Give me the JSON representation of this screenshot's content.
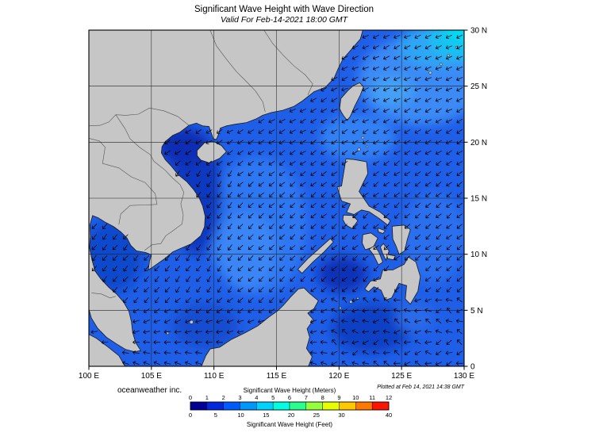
{
  "header": {
    "title": "Significant Wave Height with Wave Direction",
    "subtitle": "Valid For Feb-14-2021 18:00 GMT"
  },
  "footer": {
    "credit": "oceanweather inc.",
    "plotted_note": "Plotted at Feb 14, 2021 14:38 GMT"
  },
  "colors": {
    "land": "#c6c6c6",
    "ocean_base": "#1f5fe8",
    "frame": "#000000",
    "grid": "#222222",
    "arrow": "#000000"
  },
  "chart_data": {
    "type": "map",
    "title": "Significant Wave Height with Wave Direction",
    "subtitle": "Valid For Feb-14-2021 18:00 GMT",
    "x_axis": {
      "position": "bottom",
      "range_deg_east": [
        100,
        130
      ],
      "ticks": [
        "100 E",
        "105 E",
        "110 E",
        "115 E",
        "120 E",
        "125 E",
        "130 E"
      ]
    },
    "y_axis": {
      "position": "right",
      "range_deg_north": [
        0,
        30
      ],
      "ticks": [
        "0",
        "5 N",
        "10 N",
        "15 N",
        "20 N",
        "25 N",
        "30 N"
      ]
    },
    "grid": true,
    "colorbar": {
      "title_meters": "Significant Wave Height (Meters)",
      "title_feet": "Significant Wave Height (Feet)",
      "meters_ticks": [
        0,
        1,
        2,
        3,
        4,
        5,
        6,
        7,
        8,
        9,
        10,
        11,
        12
      ],
      "feet_ticks": [
        0,
        5,
        10,
        15,
        20,
        25,
        30,
        40
      ],
      "colors": [
        "#000096",
        "#0028dc",
        "#005aff",
        "#0096ff",
        "#00d2ff",
        "#00ffe1",
        "#28ff8c",
        "#96ff3c",
        "#e6ff00",
        "#ffc800",
        "#ff7800",
        "#ff1400"
      ]
    },
    "wave_field": {
      "arrow_meaning": "wave direction (arrows point toward direction of wave travel)",
      "dominant_direction_toward": "southwest",
      "approx_heights_m": {
        "south_china_sea_center": 2.5,
        "gulf_of_tonkin": 1.0,
        "gulf_of_thailand": 1.5,
        "vietnam_coastal_band": 1.2,
        "sulu_sea": 1.0,
        "celebes_sea": 1.5,
        "philippine_sea": 2.5,
        "northeast_corner_east_china_sea": 3.5
      }
    }
  }
}
